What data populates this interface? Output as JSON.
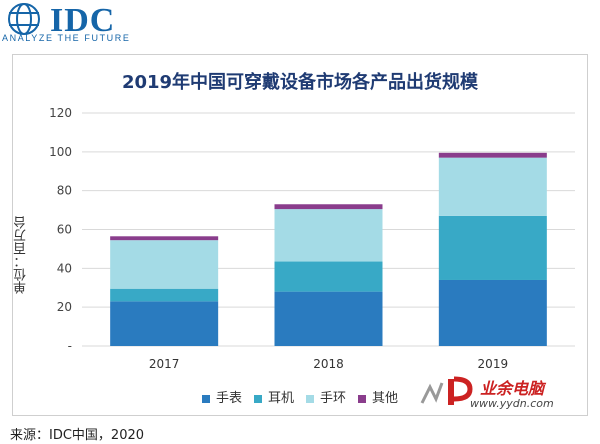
{
  "header": {
    "logo": "IDC",
    "tagline": "ANALYZE THE FUTURE"
  },
  "source": "来源：IDC中国，2020",
  "watermark": {
    "main": "业余电脑",
    "url": "www.yydn.com"
  },
  "colors": {
    "brand": "#1565a8",
    "title": "#1f3b73",
    "watch": "#2a7bbf",
    "earphone": "#38a9c6",
    "band": "#a4dbe6",
    "other": "#8a3d8c"
  },
  "chart_data": {
    "type": "bar",
    "stacked": true,
    "title": "2019年中国可穿戴设备市场各产品出货规模",
    "ylabel": "单位：百万台",
    "xlabel": "",
    "categories": [
      "2017",
      "2018",
      "2019"
    ],
    "ylim": [
      0,
      120
    ],
    "yticks": [
      "-",
      "20",
      "40",
      "60",
      "80",
      "100",
      "120"
    ],
    "grid": true,
    "legend_position": "bottom",
    "series": [
      {
        "name": "手表",
        "values": [
          23,
          28,
          34
        ],
        "color": "#2a7bbf"
      },
      {
        "name": "耳机",
        "values": [
          6.5,
          15.5,
          33
        ],
        "color": "#38a9c6"
      },
      {
        "name": "手环",
        "values": [
          25,
          27,
          30
        ],
        "color": "#a4dbe6"
      },
      {
        "name": "其他",
        "values": [
          2,
          2.5,
          2.5
        ],
        "color": "#8a3d8c"
      }
    ]
  }
}
